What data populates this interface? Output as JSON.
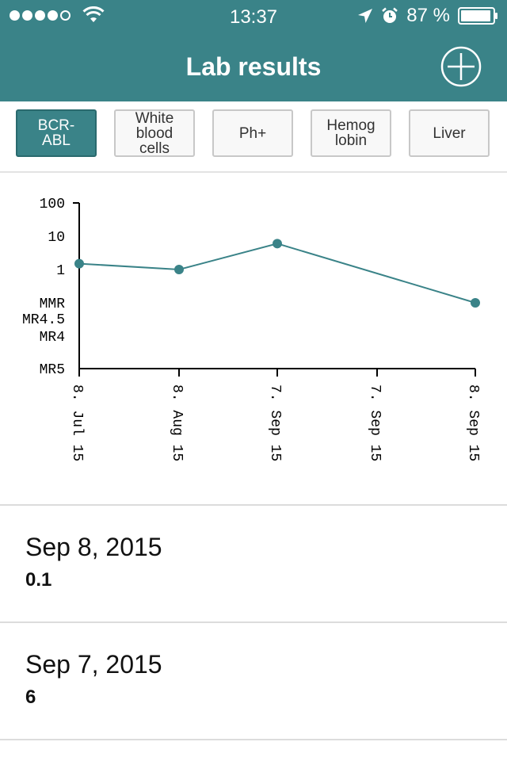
{
  "status_bar": {
    "time": "13:37",
    "battery_percent": "87 %",
    "signal_bars_filled": 4,
    "signal_bars_total": 5
  },
  "header": {
    "title": "Lab results",
    "add_icon": "plus-circle-icon"
  },
  "tabs": [
    {
      "label": "BCR-\nABL",
      "active": true
    },
    {
      "label": "White\nblood\ncells",
      "active": false
    },
    {
      "label": "Ph+",
      "active": false
    },
    {
      "label": "Hemog\nlobin",
      "active": false
    },
    {
      "label": "Liver",
      "active": false
    }
  ],
  "chart_data": {
    "type": "line",
    "x": [
      "8. Jul 15",
      "8. Aug 15",
      "7. Sep 15",
      "7. Sep 15",
      "8. Sep 15"
    ],
    "y_tick_labels": [
      "100",
      "10",
      "1",
      "MMR",
      "MR4.5",
      "MR4",
      "MR5"
    ],
    "scale": "log",
    "points": [
      {
        "x": "8. Jul 15",
        "y": 1.5
      },
      {
        "x": "8. Aug 15",
        "y": 1
      },
      {
        "x": "7. Sep 15",
        "y": 6
      },
      {
        "x": "8. Sep 15",
        "y": 0.1
      }
    ],
    "line_color": "#3a8388",
    "grid": false
  },
  "results": [
    {
      "date": "Sep 8, 2015",
      "value": "0.1"
    },
    {
      "date": "Sep 7, 2015",
      "value": "6"
    }
  ],
  "colors": {
    "accent": "#3a8388"
  }
}
